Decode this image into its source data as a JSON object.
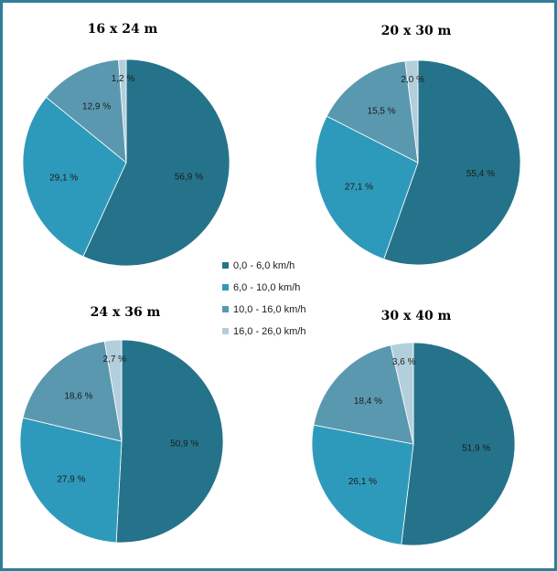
{
  "legend": [
    {
      "label": "0,0 - 6,0 km/h",
      "color": "#25738b"
    },
    {
      "label": "6,0 - 10,0 km/h",
      "color": "#2e9abb"
    },
    {
      "label": "10,0 - 16,0 km/h",
      "color": "#5a98b0"
    },
    {
      "label": "16,0 - 26,0 km/h",
      "color": "#b3cfdc"
    }
  ],
  "chart_data": [
    {
      "type": "pie",
      "title": "16 x 24 m",
      "values": [
        56.9,
        29.1,
        12.9,
        1.2
      ],
      "labels": [
        "56,9 %",
        "29,1 %",
        "12,9 %",
        "1,2 %"
      ]
    },
    {
      "type": "pie",
      "title": "20 x 30 m",
      "values": [
        55.4,
        27.1,
        15.5,
        2.0
      ],
      "labels": [
        "55,4 %",
        "27,1 %",
        "15,5 %",
        "2,0 %"
      ]
    },
    {
      "type": "pie",
      "title": "24 x 36 m",
      "values": [
        50.9,
        27.9,
        18.6,
        2.7
      ],
      "labels": [
        "50,9 %",
        "27,9 %",
        "18,6 %",
        "2,7 %"
      ]
    },
    {
      "type": "pie",
      "title": "30 x 40 m",
      "values": [
        51.9,
        26.1,
        18.4,
        3.6
      ],
      "labels": [
        "51,9 %",
        "26,1 %",
        "18,4 %",
        "3,6 %"
      ]
    }
  ]
}
